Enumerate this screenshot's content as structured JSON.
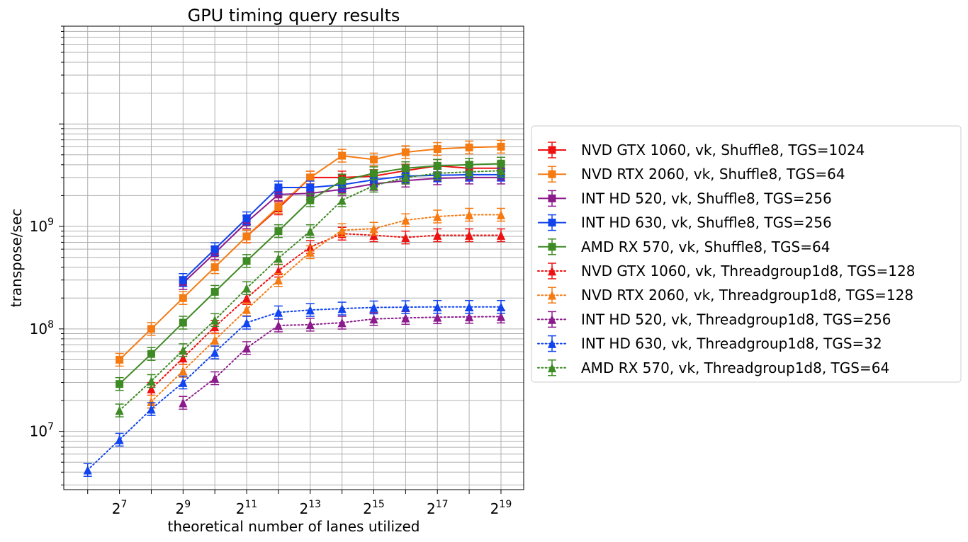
{
  "chart_data": {
    "type": "line",
    "title": "GPU timing query results",
    "xlabel": "theoretical number of lanes utilized",
    "ylabel": "transpose/sec",
    "x_scale": "log2",
    "y_scale": "log10",
    "xlim": [
      38.0,
      860000.0
    ],
    "ylim": [
      2700000.0,
      90000000000.0
    ],
    "x_tick_labels": [
      {
        "base": "2",
        "exp": "7"
      },
      {
        "base": "2",
        "exp": "9"
      },
      {
        "base": "2",
        "exp": "11"
      },
      {
        "base": "2",
        "exp": "13"
      },
      {
        "base": "2",
        "exp": "15"
      },
      {
        "base": "2",
        "exp": "17"
      },
      {
        "base": "2",
        "exp": "19"
      }
    ],
    "x_tick_values": [
      128,
      512,
      2048,
      8192,
      32768,
      131072,
      524288
    ],
    "y_tick_labels": [
      {
        "base": "10",
        "exp": "7"
      },
      {
        "base": "10",
        "exp": "8"
      },
      {
        "base": "10",
        "exp": "9"
      }
    ],
    "y_tick_values": [
      10000000,
      100000000,
      1000000000
    ],
    "grid": true,
    "legend_position": "right-outside",
    "series": [
      {
        "name": "NVD GTX 1060, vk, Shuffle8, TGS=1024",
        "color": "#ee1111",
        "style": "solid",
        "marker": "square",
        "x": [
          2048,
          4096,
          8192,
          16384,
          32768,
          65536,
          131072,
          262144,
          524288
        ],
        "y": [
          800000000,
          1500000000,
          3000000000,
          3000000000,
          3100000000,
          3500000000,
          3900000000,
          3700000000,
          3700000000
        ]
      },
      {
        "name": "NVD RTX 2060, vk, Shuffle8, TGS=64",
        "color": "#f57a12",
        "style": "solid",
        "marker": "square",
        "x": [
          128,
          256,
          512,
          1024,
          2048,
          4096,
          8192,
          16384,
          32768,
          65536,
          131072,
          262144,
          524288
        ],
        "y": [
          50000000,
          100000000,
          200000000,
          400000000,
          800000000,
          1550000000,
          3000000000,
          4900000000,
          4500000000,
          5300000000,
          5700000000,
          5900000000,
          6000000000
        ]
      },
      {
        "name": "INT HD 520, vk, Shuffle8, TGS=256",
        "color": "#8b1a8b",
        "style": "solid",
        "marker": "square",
        "x": [
          512,
          1024,
          2048,
          4096,
          8192,
          16384,
          32768,
          65536,
          131072,
          262144,
          524288
        ],
        "y": [
          280000000,
          550000000,
          1100000000,
          2050000000,
          2100000000,
          2300000000,
          2600000000,
          2800000000,
          2950000000,
          3000000000,
          3000000000
        ]
      },
      {
        "name": "INT HD 630, vk, Shuffle8, TGS=256",
        "color": "#1144ee",
        "style": "solid",
        "marker": "square",
        "x": [
          512,
          1024,
          2048,
          4096,
          8192,
          16384,
          32768,
          65536,
          131072,
          262144,
          524288
        ],
        "y": [
          300000000,
          600000000,
          1200000000,
          2400000000,
          2400000000,
          2550000000,
          2850000000,
          3100000000,
          3150000000,
          3200000000,
          3200000000
        ]
      },
      {
        "name": "AMD RX 570, vk, Shuffle8, TGS=64",
        "color": "#3e8a24",
        "style": "solid",
        "marker": "square",
        "x": [
          128,
          256,
          512,
          1024,
          2048,
          4096,
          8192,
          16384,
          32768,
          65536,
          131072,
          262144,
          524288
        ],
        "y": [
          29000000,
          57000000,
          115000000,
          230000000,
          460000000,
          900000000,
          1800000000,
          2800000000,
          3300000000,
          3700000000,
          3900000000,
          4000000000,
          4100000000
        ]
      },
      {
        "name": "NVD GTX 1060, vk, Threadgroup1d8, TGS=128",
        "color": "#ee1111",
        "style": "dotted",
        "marker": "triangle",
        "x": [
          256,
          512,
          1024,
          2048,
          4096,
          8192,
          16384,
          32768,
          65536,
          131072,
          262144,
          524288
        ],
        "y": [
          26000000,
          52000000,
          105000000,
          200000000,
          370000000,
          630000000,
          850000000,
          820000000,
          780000000,
          820000000,
          820000000,
          820000000
        ]
      },
      {
        "name": "NVD RTX 2060, vk, Threadgroup1d8, TGS=128",
        "color": "#f57a12",
        "style": "dotted",
        "marker": "triangle",
        "x": [
          256,
          512,
          1024,
          2048,
          4096,
          8192,
          16384,
          32768,
          65536,
          131072,
          262144,
          524288
        ],
        "y": [
          19500000,
          39000000,
          78000000,
          155000000,
          300000000,
          560000000,
          920000000,
          950000000,
          1150000000,
          1250000000,
          1300000000,
          1300000000
        ]
      },
      {
        "name": "INT HD 520, vk, Threadgroup1d8, TGS=256",
        "color": "#8b1a8b",
        "style": "dotted",
        "marker": "triangle",
        "x": [
          512,
          1024,
          2048,
          4096,
          8192,
          16384,
          32768,
          65536,
          131072,
          262144,
          524288
        ],
        "y": [
          19000000,
          33000000,
          65000000,
          108000000,
          110000000,
          115000000,
          125000000,
          128000000,
          130000000,
          131000000,
          132000000
        ]
      },
      {
        "name": "INT HD 630, vk, Threadgroup1d8, TGS=32",
        "color": "#1144ee",
        "style": "dotted",
        "marker": "triangle",
        "x": [
          64,
          128,
          256,
          512,
          1024,
          2048,
          4096,
          8192,
          16384,
          32768,
          65536,
          131072,
          262144,
          524288
        ],
        "y": [
          4200000,
          8300000,
          16500000,
          30000000,
          59000000,
          115000000,
          145000000,
          153000000,
          158000000,
          162000000,
          163000000,
          164000000,
          164000000,
          164000000
        ]
      },
      {
        "name": "AMD RX 570, vk, Threadgroup1d8, TGS=64",
        "color": "#3e8a24",
        "style": "dotted",
        "marker": "triangle",
        "x": [
          128,
          256,
          512,
          1024,
          2048,
          4096,
          8192,
          16384,
          32768,
          65536,
          131072,
          262144,
          524288
        ],
        "y": [
          16000000,
          31000000,
          62000000,
          122000000,
          250000000,
          490000000,
          900000000,
          1800000000,
          2500000000,
          3000000000,
          3300000000,
          3400000000,
          3500000000
        ]
      }
    ]
  }
}
